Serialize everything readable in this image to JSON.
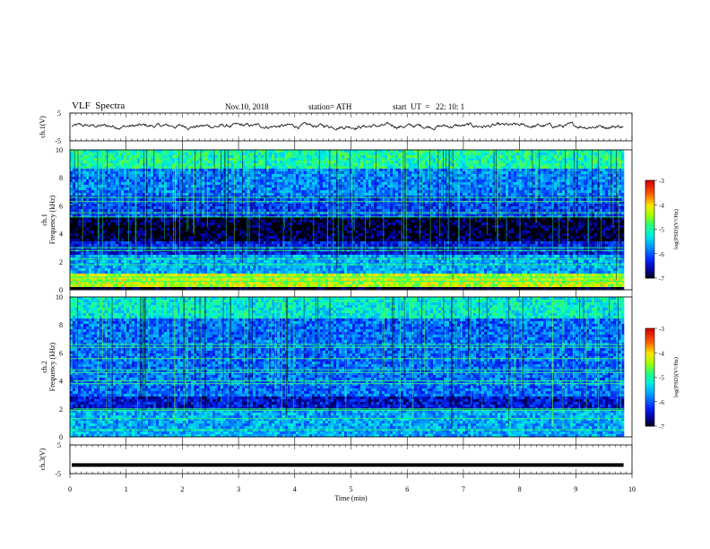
{
  "header": {
    "title": "VLF  Spectra",
    "date": "Nov.10, 2018",
    "station": "station= ATH",
    "start_ut": "start  UT  =   22: 10: 1"
  },
  "chart_data": [
    {
      "type": "line",
      "panel": "ch1-waveform",
      "ylabel": "ch.1(V)",
      "ylim": [
        -5,
        5
      ],
      "yticks": [
        "5",
        "-5"
      ],
      "x_unit": "min",
      "xlim": [
        0,
        10
      ],
      "series_color": "#000000",
      "description_values": {
        "mean_level": 0.3,
        "fluctuation": 0.6
      }
    },
    {
      "type": "heatmap",
      "panel": "ch1-spectrogram",
      "ylabel": "Frequency (kHz)",
      "ylabel_prefix": "ch.1",
      "ylim": [
        0,
        10
      ],
      "yticks": [
        "10",
        "8",
        "6",
        "4",
        "2",
        "0"
      ],
      "xlim": [
        0,
        9.85
      ],
      "colorbar": {
        "label": "log(PSD)(V²/Hz)",
        "range": [
          -7,
          -3
        ],
        "ticks": [
          "-3",
          "-4",
          "-5",
          "-6",
          "-7"
        ]
      },
      "bands_khz": [
        {
          "from": 0,
          "to": 0.3,
          "level": -7
        },
        {
          "from": 0.3,
          "to": 1.2,
          "level": -4.3
        },
        {
          "from": 1.2,
          "to": 2.6,
          "level": -5.6
        },
        {
          "from": 2.6,
          "to": 3.6,
          "level": -6.3
        },
        {
          "from": 3.6,
          "to": 5.2,
          "level": -6.9
        },
        {
          "from": 5.2,
          "to": 6.8,
          "level": -6.1
        },
        {
          "from": 6.8,
          "to": 8.8,
          "level": -5.8
        },
        {
          "from": 8.8,
          "to": 10,
          "level": -5.0
        }
      ],
      "lines_khz": [
        0.6,
        0.9,
        1.8,
        2.2,
        2.8,
        3.0,
        5.2,
        5.5,
        6.3,
        6.6
      ]
    },
    {
      "type": "heatmap",
      "panel": "ch2-spectrogram",
      "ylabel": "Frequency (kHz)",
      "ylabel_prefix": "ch.2",
      "ylim": [
        0,
        10
      ],
      "yticks": [
        "10",
        "8",
        "6",
        "4",
        "2",
        "0"
      ],
      "xlim": [
        0,
        9.85
      ],
      "colorbar": {
        "label": "log(PSD)(V²/Hz)",
        "range": [
          -7,
          -3
        ],
        "ticks": [
          "-3",
          "-4",
          "-5",
          "-6",
          "-7"
        ]
      },
      "bands_khz": [
        {
          "from": 0,
          "to": 2.0,
          "level": -5.6
        },
        {
          "from": 2.0,
          "to": 3.0,
          "level": -6.4
        },
        {
          "from": 3.0,
          "to": 5.8,
          "level": -5.9
        },
        {
          "from": 5.8,
          "to": 8.6,
          "level": -5.9
        },
        {
          "from": 8.6,
          "to": 10,
          "level": -5.2
        }
      ],
      "lines_khz": [
        0.5,
        1.3,
        1.9,
        2.0,
        3.8,
        4.0,
        4.6,
        4.8,
        5.6,
        6.4,
        6.6
      ]
    },
    {
      "type": "line",
      "panel": "ch3-waveform",
      "ylabel": "ch.3(V)",
      "ylim": [
        -5,
        5
      ],
      "yticks": [
        "5",
        "-5"
      ],
      "xlabel": "Time  (min)",
      "xlim": [
        0,
        10
      ],
      "xticks": [
        "0",
        "1",
        "2",
        "3",
        "4",
        "5",
        "6",
        "7",
        "8",
        "9",
        "10"
      ],
      "series_color": "#000000",
      "constant_value": -2.0,
      "data_end_x": 9.85
    }
  ]
}
